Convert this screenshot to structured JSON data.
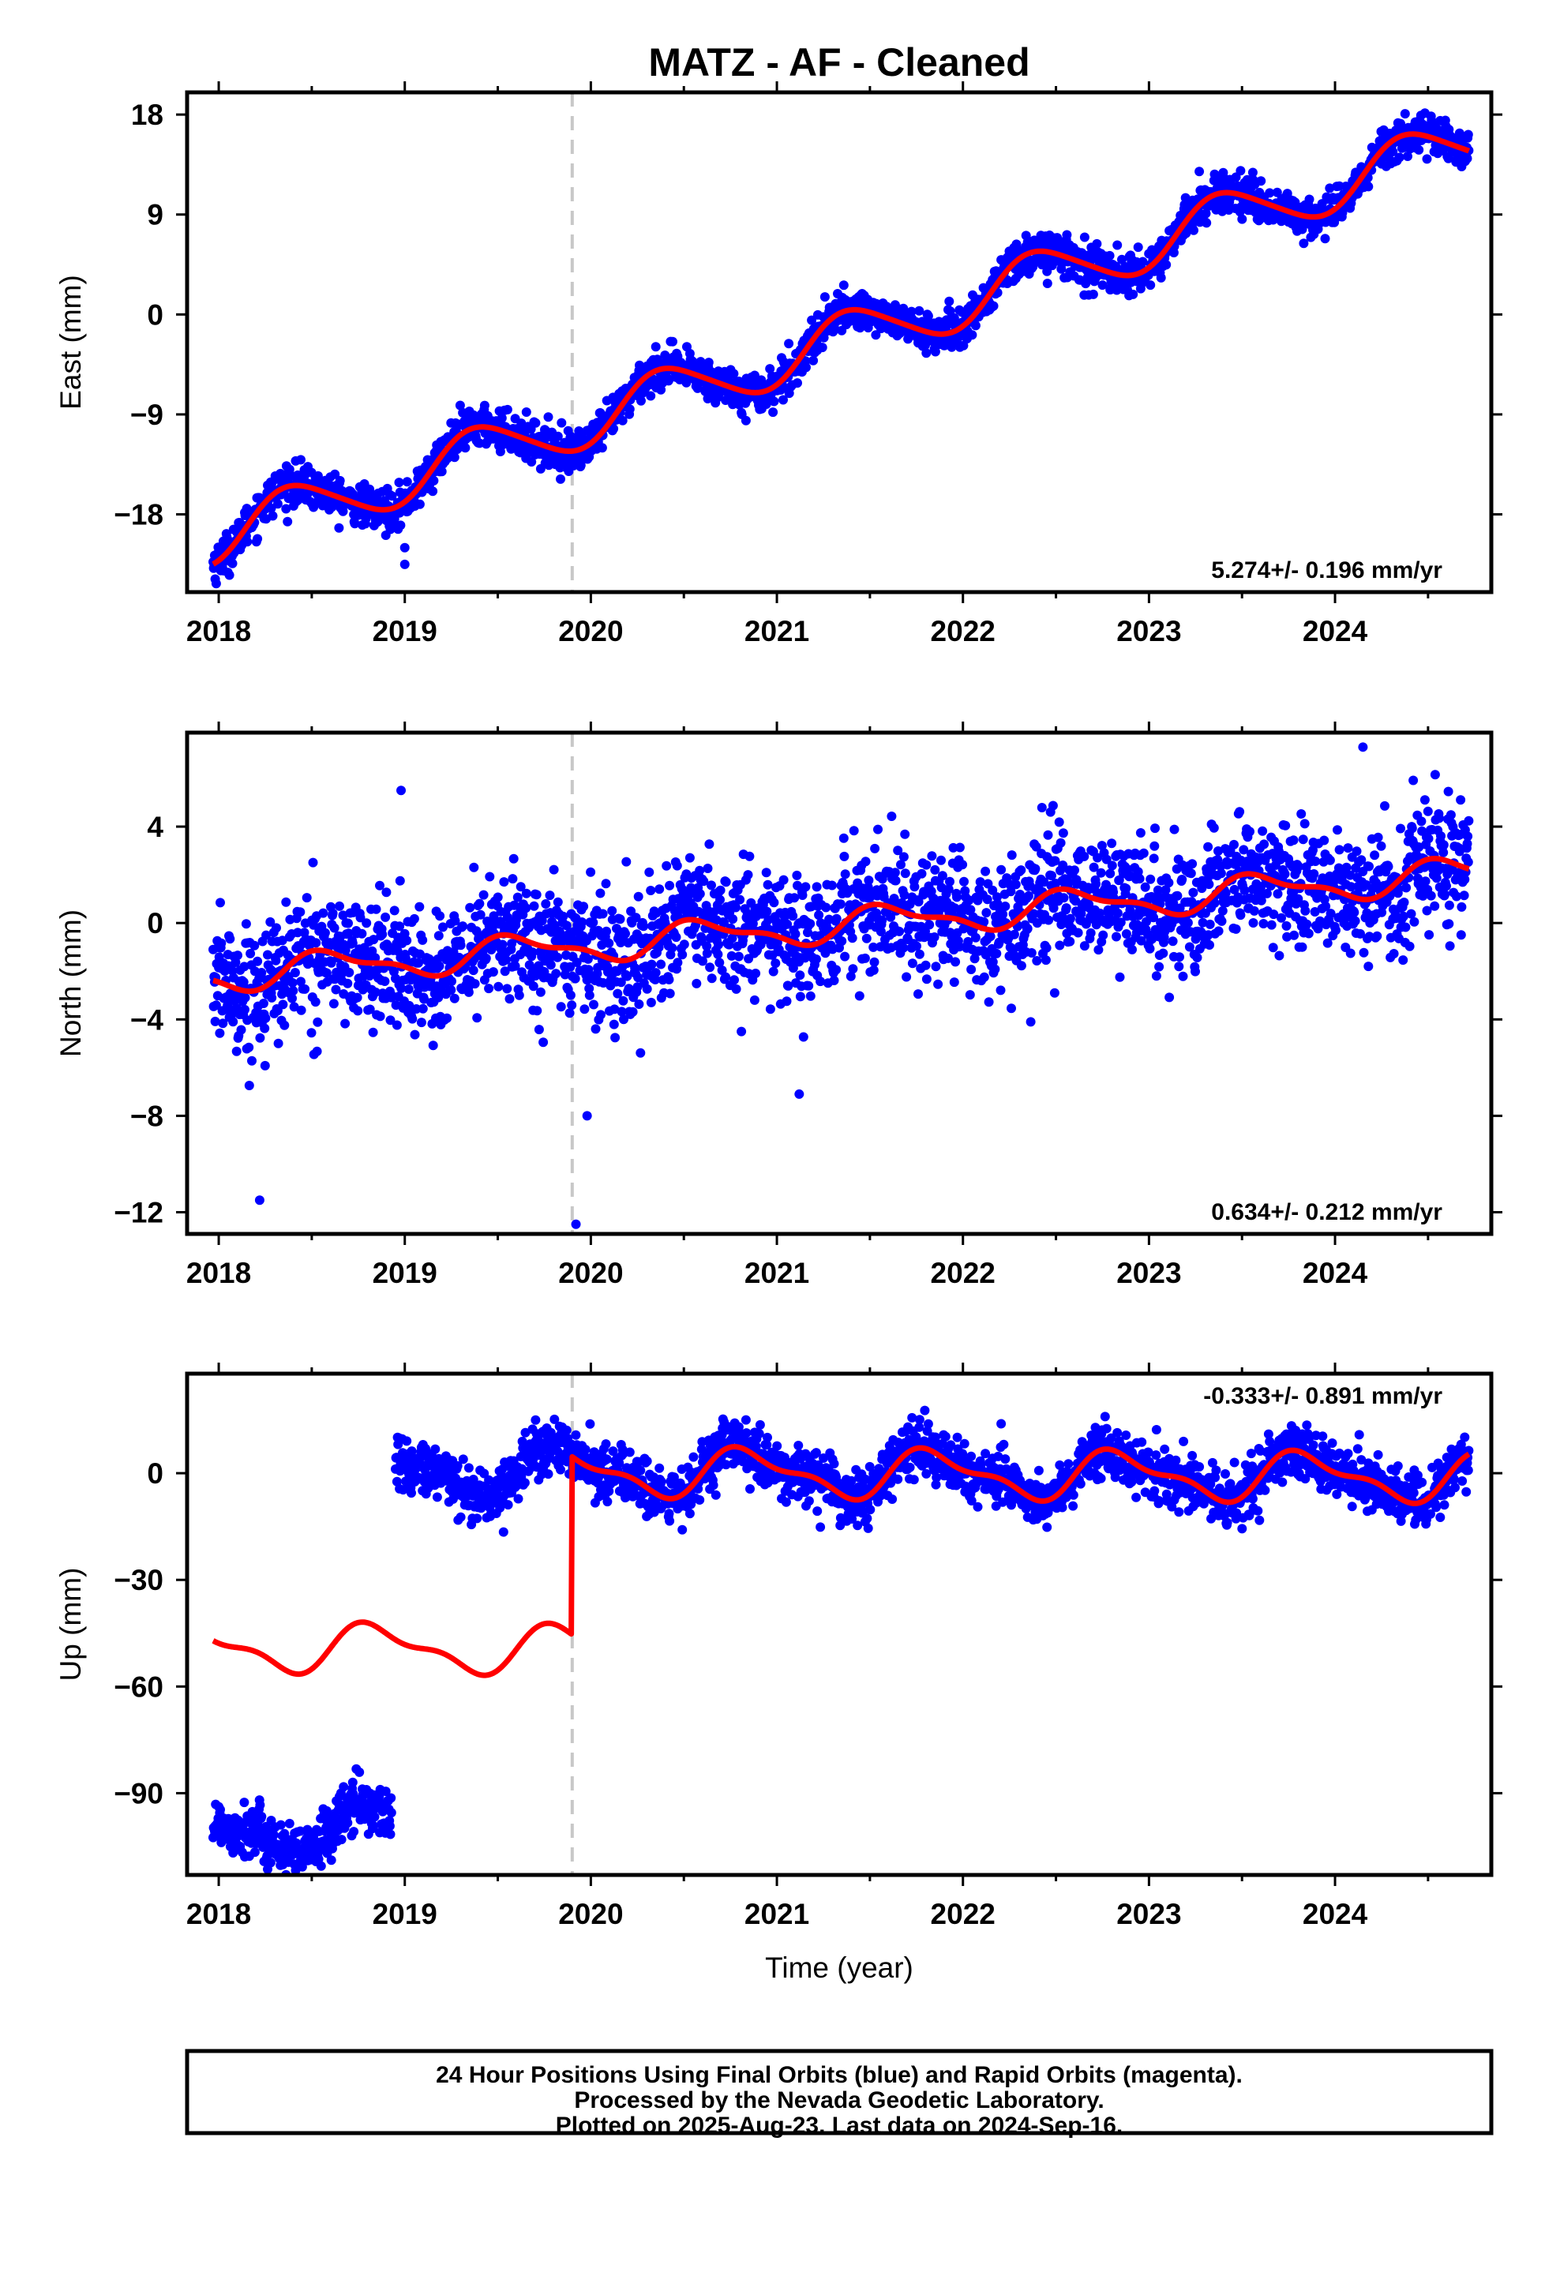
{
  "title": "MATZ  - AF - Cleaned",
  "footer": {
    "line1": "24 Hour Positions Using Final Orbits (blue) and Rapid Orbits (magenta).",
    "line2": "Processed by the Nevada Geodetic Laboratory.",
    "line3": "Plotted on 2025-Aug-23. Last data on 2024-Sep-16."
  },
  "colors": {
    "points": "#0000ff",
    "fit": "#ff0000",
    "event_line": "#c8c8c8",
    "frame": "#000000"
  },
  "chart_data": [
    {
      "type": "scatter",
      "ylabel": "East (mm)",
      "xlabel": "",
      "xlim": [
        2017.83,
        2024.84
      ],
      "ylim": [
        -25,
        20
      ],
      "xticks": [
        2018,
        2019,
        2020,
        2021,
        2022,
        2023,
        2024
      ],
      "yticks": [
        -18,
        -9,
        0,
        9,
        18
      ],
      "ytick_labels": [
        "−18",
        "−9",
        "0",
        "9",
        "18"
      ],
      "rate_label": "5.274+/- 0.196 mm/yr",
      "event_line_x": 2019.9,
      "model": {
        "trend_mm_per_yr": 5.274,
        "intercept_mm_2021": -4.1,
        "annual_amp": 2.4,
        "annual_phase_yr": 0.15,
        "semiannual_amp": 0.3,
        "offset_2019_9": 0.0,
        "x_start": 2017.97,
        "x_end": 2024.72
      },
      "observations": {
        "x_start": 2017.97,
        "x_end": 2024.72,
        "scatter_mm": 0.9,
        "gaps": []
      },
      "outliers": [
        [
          2019.0,
          -21.0
        ],
        [
          2019.0,
          -22.5
        ],
        [
          2018.0,
          -21.5
        ]
      ],
      "series": [
        {
          "name": "Final Orbits (blue)",
          "color": "#0000ff",
          "kind": "points"
        },
        {
          "name": "fit",
          "color": "#ff0000",
          "kind": "line"
        }
      ]
    },
    {
      "type": "scatter",
      "ylabel": "North (mm)",
      "xlabel": "",
      "xlim": [
        2017.83,
        2024.84
      ],
      "ylim": [
        -12.9,
        7.9
      ],
      "xticks": [
        2018,
        2019,
        2020,
        2021,
        2022,
        2023,
        2024
      ],
      "yticks": [
        -12,
        -8,
        -4,
        0,
        4
      ],
      "ytick_labels": [
        "−12",
        "−8",
        "−4",
        "0",
        "4"
      ],
      "rate_label": "0.634+/- 0.212 mm/yr",
      "event_line_x": 2019.9,
      "model": {
        "trend_mm_per_yr": 0.634,
        "intercept_mm_2021": -0.3,
        "annual_amp": 0.6,
        "annual_phase_yr": 0.35,
        "semiannual_amp": 0.25,
        "offset_2019_9": 0.0,
        "x_start": 2017.97,
        "x_end": 2024.72
      },
      "observations": {
        "x_start": 2017.97,
        "x_end": 2024.72,
        "scatter_mm": 1.3,
        "gaps": []
      },
      "outliers": [
        [
          2018.22,
          -11.5
        ],
        [
          2019.92,
          -12.5
        ],
        [
          2019.98,
          -8.0
        ],
        [
          2021.12,
          -7.1
        ],
        [
          2018.98,
          5.5
        ],
        [
          2024.15,
          7.3
        ]
      ],
      "series": [
        {
          "name": "Final Orbits (blue)",
          "color": "#0000ff",
          "kind": "points"
        },
        {
          "name": "fit",
          "color": "#ff0000",
          "kind": "line"
        }
      ]
    },
    {
      "type": "scatter",
      "ylabel": "Up (mm)",
      "xlabel": "Time (year)",
      "xlim": [
        2017.83,
        2024.84
      ],
      "ylim": [
        -113,
        28
      ],
      "xticks": [
        2018,
        2019,
        2020,
        2021,
        2022,
        2023,
        2024
      ],
      "yticks": [
        -90,
        -60,
        -30,
        0
      ],
      "ytick_labels": [
        "−90",
        "−60",
        "−30",
        "0"
      ],
      "rate_label": "-0.333+/- 0.891 mm/yr",
      "event_line_x": 2019.9,
      "model": {
        "trend_mm_per_yr": -0.333,
        "intercept_mm_2021": 0.0,
        "annual_amp": 6.0,
        "annual_phase_yr": 0.6,
        "semiannual_amp": 2.5,
        "offset_2019_9": 50.0,
        "x_start": 2017.97,
        "x_end": 2024.72
      },
      "observations": {
        "x_start": 2017.97,
        "x_end": 2024.72,
        "scatter_mm": 3.8,
        "gaps": [
          [
            2018.93,
            2018.95
          ]
        ],
        "offset_before_2018_95": -51.0
      },
      "outliers": [],
      "series": [
        {
          "name": "Final Orbits (blue)",
          "color": "#0000ff",
          "kind": "points"
        },
        {
          "name": "fit",
          "color": "#ff0000",
          "kind": "line"
        }
      ]
    }
  ]
}
